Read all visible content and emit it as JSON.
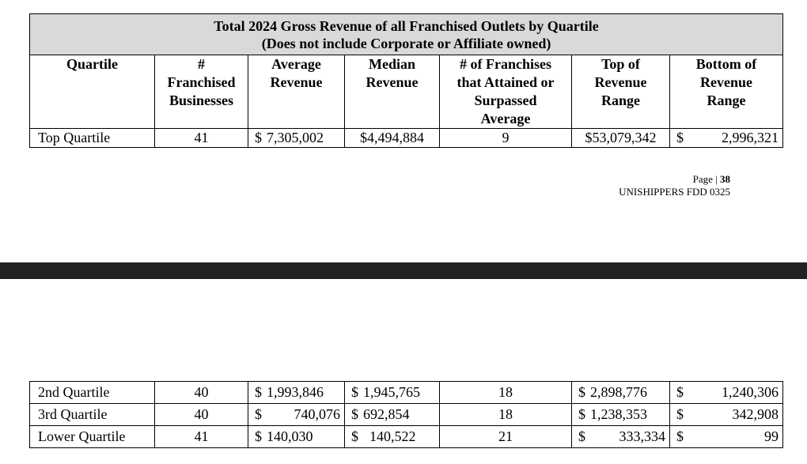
{
  "table_title_line1": "Total 2024 Gross Revenue of all Franchised Outlets by Quartile",
  "table_title_line2": "(Does not include Corporate or Affiliate owned)",
  "headers": {
    "quartile": "Quartile",
    "num_franchised": [
      "#",
      "Franchised",
      "Businesses"
    ],
    "avg_revenue": [
      "Average",
      "Revenue"
    ],
    "median_revenue": [
      "Median",
      "Revenue"
    ],
    "num_attained": [
      "# of Franchises",
      "that Attained or",
      "Surpassed",
      "Average"
    ],
    "top_range": [
      "Top of",
      "Revenue",
      "Range"
    ],
    "bottom_range": [
      "Bottom of",
      "Revenue",
      "Range"
    ]
  },
  "rows": [
    {
      "quartile": "Top Quartile",
      "count": "41",
      "avg_sym": "$",
      "avg": "7,305,002",
      "median_sym": "",
      "median": "$4,494,884",
      "attained": "9",
      "top_sym": "",
      "top": "$53,079,342",
      "bottom_sym": "$",
      "bottom": "2,996,321"
    },
    {
      "quartile": "2nd Quartile",
      "count": "40",
      "avg_sym": "$",
      "avg": "1,993,846",
      "median_sym": "$",
      "median": "1,945,765",
      "attained": "18",
      "top_sym": "$",
      "top": "2,898,776",
      "bottom_sym": "$",
      "bottom": "1,240,306"
    },
    {
      "quartile": "3rd Quartile",
      "count": "40",
      "avg_sym": "$",
      "avg": "740,076",
      "median_sym": "$",
      "median": "692,854",
      "attained": "18",
      "top_sym": "$",
      "top": "1,238,353",
      "bottom_sym": "$",
      "bottom": "342,908"
    },
    {
      "quartile": "Lower Quartile",
      "count": "41",
      "avg_sym": "$",
      "avg": "140,030",
      "median_sym": "$",
      "median": "140,522",
      "attained": "21",
      "top_sym": "$",
      "top": "333,334",
      "bottom_sym": "$",
      "bottom": "99"
    }
  ],
  "footer": {
    "page_label": "Page | ",
    "page_number": "38",
    "doc_id": "UNISHIPPERS FDD 0325"
  }
}
